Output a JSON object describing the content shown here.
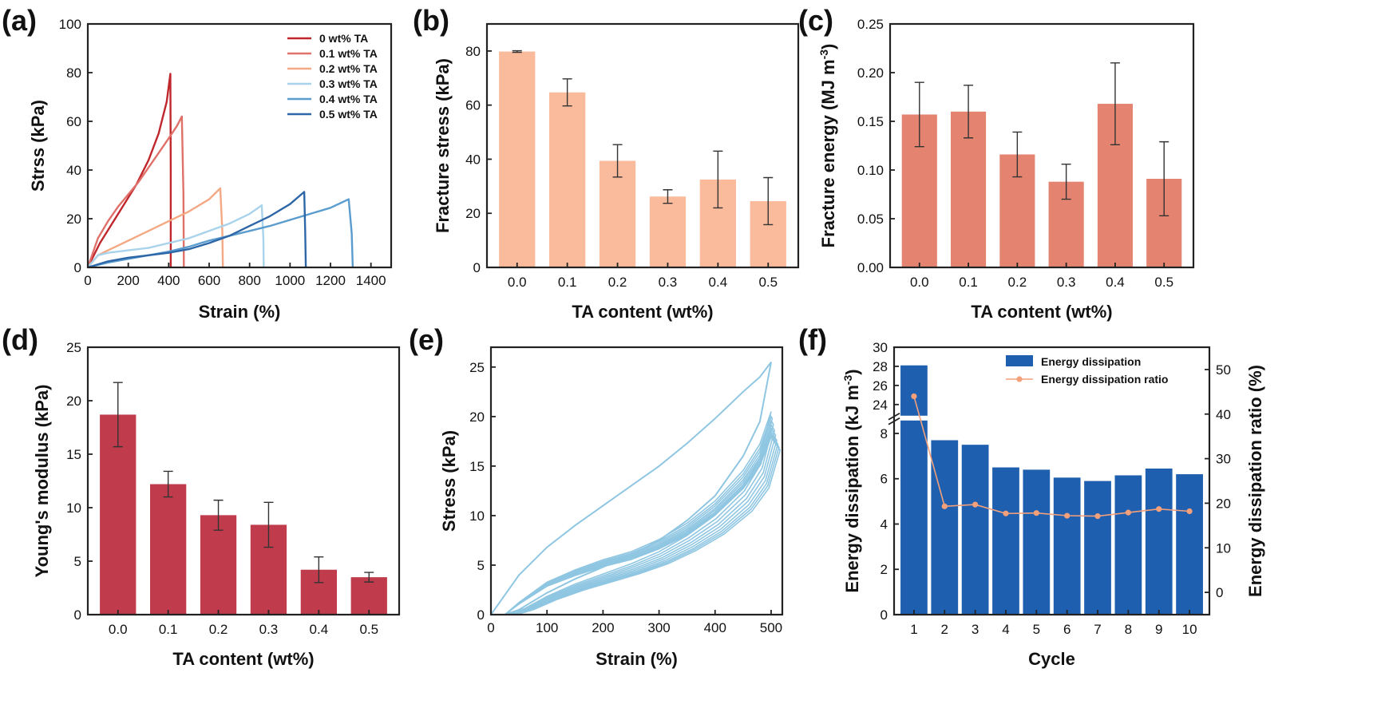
{
  "chart_data": [
    {
      "panel": "(a)",
      "type": "line",
      "xlabel": "Strain (%)",
      "ylabel": "Strss (kPa)",
      "xlim": [
        0,
        1500
      ],
      "ylim": [
        0,
        100
      ],
      "xticks": [
        0,
        200,
        400,
        600,
        800,
        1000,
        1200,
        1400
      ],
      "yticks": [
        0,
        20,
        40,
        60,
        80,
        100
      ],
      "series": [
        {
          "name": "0 wt% TA",
          "color": "#c0272d",
          "x": [
            0,
            60,
            120,
            180,
            240,
            300,
            350,
            390,
            408,
            410,
            410
          ],
          "y": [
            0,
            10,
            18,
            26,
            34,
            44,
            55,
            68,
            79.5,
            40,
            0
          ]
        },
        {
          "name": "0.1 wt% TA",
          "color": "#e0716a",
          "x": [
            0,
            50,
            100,
            150,
            200,
            250,
            300,
            350,
            400,
            440,
            465,
            473,
            475
          ],
          "y": [
            0,
            12,
            19,
            25,
            30,
            35,
            41,
            47,
            53,
            58,
            62,
            30,
            0
          ]
        },
        {
          "name": "0.2 wt% TA",
          "color": "#f4a883",
          "x": [
            0,
            50,
            100,
            150,
            200,
            300,
            400,
            500,
            600,
            655,
            665,
            668
          ],
          "y": [
            0,
            5,
            7,
            9,
            11,
            15,
            19,
            23,
            28,
            32.5,
            15,
            0
          ]
        },
        {
          "name": "0.3 wt% TA",
          "color": "#a8d3ea",
          "x": [
            0,
            50,
            100,
            200,
            300,
            400,
            500,
            600,
            700,
            800,
            860,
            868,
            870
          ],
          "y": [
            0,
            5,
            6,
            7,
            8,
            10,
            12,
            15,
            18,
            22,
            25.5,
            12,
            0
          ]
        },
        {
          "name": "0.4 wt% TA",
          "color": "#5b9ccf",
          "x": [
            0,
            100,
            200,
            300,
            400,
            500,
            600,
            700,
            800,
            900,
            1000,
            1100,
            1200,
            1290,
            1305,
            1310
          ],
          "y": [
            0,
            2,
            3.5,
            5,
            6.5,
            8.5,
            11,
            13,
            15,
            17,
            19.5,
            22,
            24.5,
            28,
            14,
            0
          ]
        },
        {
          "name": "0.5 wt% TA",
          "color": "#2e67a7",
          "x": [
            0,
            100,
            200,
            300,
            400,
            500,
            600,
            700,
            800,
            900,
            1000,
            1070,
            1075,
            1078
          ],
          "y": [
            0,
            2.5,
            4,
            5,
            6,
            7.5,
            10,
            13,
            17,
            21,
            26,
            31,
            15,
            0
          ]
        }
      ]
    },
    {
      "panel": "(b)",
      "type": "bar",
      "xlabel": "TA content (wt%)",
      "ylabel": "Fracture stress (kPa)",
      "categories": [
        "0.0",
        "0.1",
        "0.2",
        "0.3",
        "0.4",
        "0.5"
      ],
      "values": [
        79.8,
        64.7,
        39.4,
        26.2,
        32.5,
        24.5
      ],
      "errors": [
        0.3,
        5,
        6,
        2.5,
        10.5,
        8.7
      ],
      "ylim": [
        0,
        90
      ],
      "yticks": [
        0,
        20,
        40,
        60,
        80
      ],
      "color": "#f9bb9b"
    },
    {
      "panel": "(c)",
      "type": "bar",
      "xlabel": "TA content (wt%)",
      "ylabel": "Fracture energy (MJ m-3)",
      "categories": [
        "0.0",
        "0.1",
        "0.2",
        "0.3",
        "0.4",
        "0.5"
      ],
      "values": [
        0.157,
        0.16,
        0.116,
        0.088,
        0.168,
        0.091
      ],
      "errors": [
        0.033,
        0.027,
        0.023,
        0.018,
        0.042,
        0.038
      ],
      "ylim": [
        0,
        0.25
      ],
      "yticks": [
        "0.00",
        "0.05",
        "0.10",
        "0.15",
        "0.20",
        "0.25"
      ],
      "color": "#e48470"
    },
    {
      "panel": "(d)",
      "type": "bar",
      "xlabel": "TA content (wt%)",
      "ylabel": "Young's modulus (kPa)",
      "categories": [
        "0.0",
        "0.1",
        "0.2",
        "0.3",
        "0.4",
        "0.5"
      ],
      "values": [
        18.7,
        12.2,
        9.3,
        8.4,
        4.2,
        3.5
      ],
      "errors": [
        3.0,
        1.2,
        1.4,
        2.1,
        1.2,
        0.45
      ],
      "ylim": [
        0,
        25
      ],
      "yticks": [
        0,
        5,
        10,
        15,
        20,
        25
      ],
      "color": "#c03c4c"
    },
    {
      "panel": "(e)",
      "type": "line",
      "xlabel": "Strain (%)",
      "ylabel": "Stress (kPa)",
      "xlim": [
        0,
        520
      ],
      "ylim": [
        0,
        27
      ],
      "xticks": [
        0,
        100,
        200,
        300,
        400,
        500
      ],
      "yticks": [
        0,
        5,
        10,
        15,
        20,
        25
      ],
      "color": "#8fc6e2",
      "first_cycle": {
        "loading_x": [
          0,
          50,
          100,
          150,
          200,
          250,
          300,
          350,
          400,
          450,
          480,
          500
        ],
        "loading_y": [
          0,
          4,
          6.8,
          9,
          11,
          13,
          15,
          17.3,
          19.8,
          22.5,
          24,
          25.5
        ],
        "unloading_x": [
          500,
          480,
          450,
          400,
          350,
          300,
          250,
          200,
          150,
          100,
          50,
          25
        ],
        "unloading_y": [
          25.5,
          19.5,
          16,
          12,
          9.5,
          7.5,
          6,
          4.8,
          3.6,
          2.2,
          0.5,
          0
        ]
      },
      "later_cycles": {
        "peaks": [
          20.5,
          19.8,
          19.2,
          18.6,
          18.1,
          17.6,
          17.2,
          16.9,
          16.6
        ],
        "loading_x": [
          25,
          50,
          100,
          150,
          200,
          250,
          300,
          350,
          400,
          450,
          480,
          500
        ],
        "loading_shape": [
          0,
          0.06,
          0.16,
          0.22,
          0.27,
          0.31,
          0.37,
          0.45,
          0.56,
          0.71,
          0.84,
          1.0
        ],
        "unloading_x": [
          500,
          480,
          450,
          400,
          350,
          300,
          250,
          200,
          150,
          100,
          60,
          30
        ],
        "unloading_shape": [
          1.0,
          0.77,
          0.63,
          0.49,
          0.39,
          0.31,
          0.25,
          0.2,
          0.15,
          0.09,
          0.03,
          0
        ]
      }
    },
    {
      "panel": "(f)",
      "type": "bar",
      "xlabel": "Cycle",
      "ylabel": "Energy dissipation (kJ m-3)",
      "ylabel_right": "Energy dissipation ratio (%)",
      "categories": [
        "1",
        "2",
        "3",
        "4",
        "5",
        "6",
        "7",
        "8",
        "9",
        "10"
      ],
      "series": [
        {
          "name": "Energy dissipation",
          "type": "bar",
          "axis": "left",
          "color": "#1f5faf",
          "values": [
            28.1,
            7.7,
            7.5,
            6.5,
            6.4,
            6.05,
            5.9,
            6.15,
            6.45,
            6.2
          ]
        },
        {
          "name": "Energy dissipation ratio",
          "type": "line",
          "axis": "right",
          "color": "#f4a07a",
          "values": [
            44,
            19.3,
            19.7,
            17.7,
            17.8,
            17.2,
            17.1,
            17.9,
            18.7,
            18.2
          ]
        }
      ],
      "y_left_ticks": [
        0,
        2,
        4,
        6,
        8,
        24,
        26,
        28,
        30
      ],
      "y_left_break": [
        8.5,
        23
      ],
      "y_left_lower": [
        0,
        8.5
      ],
      "y_left_upper": [
        23,
        30
      ],
      "y_right_ticks": [
        0,
        10,
        20,
        30,
        40,
        50
      ],
      "y_right_lim": [
        -5,
        55
      ]
    }
  ]
}
